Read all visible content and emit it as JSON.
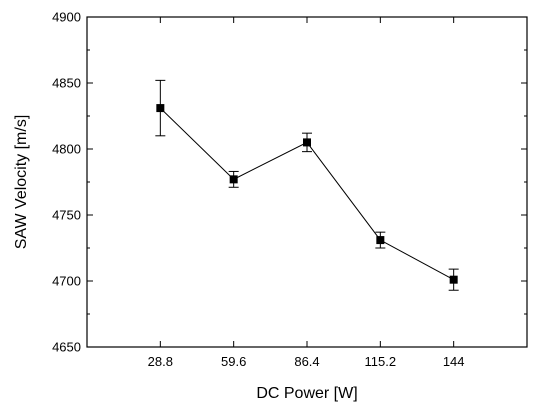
{
  "chart_data": {
    "type": "line",
    "title": "",
    "xlabel": "DC Power [W]",
    "ylabel": "SAW Velocity [m/s]",
    "categories": [
      "28.8",
      "59.6",
      "86.4",
      "115.2",
      "144"
    ],
    "values": [
      4831,
      4777,
      4805,
      4731,
      4701
    ],
    "error": [
      21,
      6,
      7,
      6,
      8
    ],
    "ylim": [
      4650,
      4900
    ],
    "yticks": [
      4650,
      4700,
      4750,
      4800,
      4850,
      4900
    ],
    "grid": false,
    "legend": "none",
    "marker": "square",
    "line_color": "#000000"
  }
}
